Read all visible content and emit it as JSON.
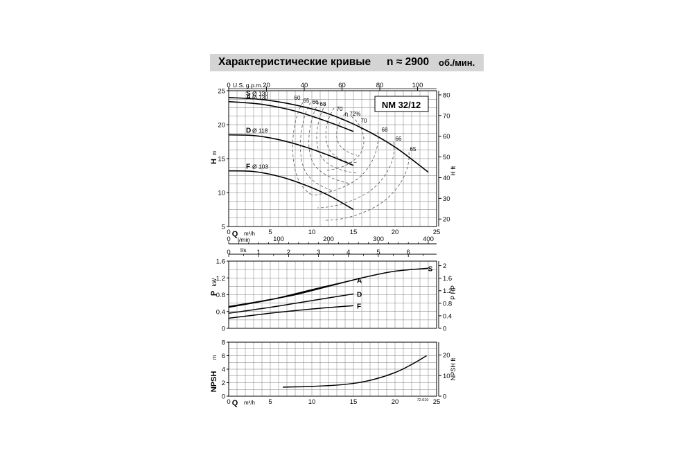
{
  "title": {
    "main": "Характеристические кривые",
    "speed": "n ≈ 2900",
    "unit": "об./мин."
  },
  "model": "NM 32/12",
  "doc_code": "72.010",
  "chart_data": [
    {
      "type": "line",
      "panel": "head",
      "ylabel": "H m",
      "ylabel_right": "H ft",
      "xlabel": "Q m³/h",
      "xlim": [
        0,
        25
      ],
      "ylim": [
        5,
        25
      ],
      "ylim_right": [
        16.4,
        82.0
      ],
      "xticks": [
        0,
        5,
        10,
        15,
        20,
        25
      ],
      "yticks": [
        5,
        10,
        15,
        20,
        25
      ],
      "yticks_right": [
        20,
        30,
        40,
        50,
        60,
        70,
        80
      ],
      "top_axis": {
        "label": "U.S. g.p.m.",
        "ticks": [
          0,
          20,
          40,
          60,
          80,
          100
        ],
        "factor": 4.403
      },
      "grid": true,
      "series": [
        {
          "name": "S",
          "diameter": "Ø 130",
          "x": [
            0,
            4,
            8,
            12,
            16,
            20,
            24
          ],
          "y": [
            24.0,
            23.7,
            22.9,
            21.6,
            19.5,
            16.7,
            13.0
          ]
        },
        {
          "name": "A",
          "diameter": "Ø 130",
          "x": [
            0,
            4,
            8,
            12,
            15
          ],
          "y": [
            23.4,
            23.0,
            22.0,
            20.4,
            19.0
          ]
        },
        {
          "name": "D",
          "diameter": "Ø 118",
          "x": [
            0,
            3,
            6,
            9,
            12,
            15
          ],
          "y": [
            18.5,
            18.4,
            17.8,
            16.8,
            15.5,
            14.0
          ]
        },
        {
          "name": "F",
          "diameter": "Ø 103",
          "x": [
            0,
            3,
            6,
            9,
            12,
            15
          ],
          "y": [
            13.2,
            13.1,
            12.4,
            11.2,
            9.6,
            7.5
          ]
        }
      ],
      "efficiency_labels": [
        "60",
        "65",
        "66",
        "68",
        "70",
        "η 72%",
        "70",
        "68",
        "66",
        "65"
      ]
    },
    {
      "type": "line",
      "panel": "flow-scales",
      "l_min": {
        "label": "l/min",
        "ticks": [
          0,
          100,
          200,
          300,
          400
        ]
      },
      "l_s": {
        "label": "l/s",
        "ticks": [
          0,
          1,
          2,
          3,
          4,
          5,
          6
        ]
      }
    },
    {
      "type": "line",
      "panel": "power",
      "ylabel": "P kW",
      "ylabel_right": "P HP",
      "xlim": [
        0,
        25
      ],
      "ylim": [
        0,
        1.6
      ],
      "ylim_right": [
        0,
        2.145
      ],
      "yticks": [
        0,
        0.4,
        0.8,
        1.2,
        1.6
      ],
      "yticks_right": [
        0,
        0.4,
        0.8,
        1.2,
        1.6,
        2.0
      ],
      "grid": true,
      "series": [
        {
          "name": "S",
          "x": [
            0,
            4,
            8,
            12,
            16,
            20,
            24
          ],
          "y": [
            0.52,
            0.65,
            0.8,
            1.0,
            1.2,
            1.36,
            1.43
          ]
        },
        {
          "name": "A",
          "x": [
            0,
            5,
            10,
            15
          ],
          "y": [
            0.5,
            0.68,
            0.92,
            1.15
          ]
        },
        {
          "name": "D",
          "x": [
            0,
            5,
            10,
            15
          ],
          "y": [
            0.36,
            0.5,
            0.66,
            0.82
          ]
        },
        {
          "name": "F",
          "x": [
            0,
            5,
            10,
            15
          ],
          "y": [
            0.24,
            0.36,
            0.46,
            0.54
          ]
        }
      ]
    },
    {
      "type": "line",
      "panel": "npsh",
      "ylabel": "NPSH m",
      "ylabel_right": "NPSH ft",
      "xlabel": "Q m³/h",
      "xlim": [
        0,
        25
      ],
      "ylim": [
        0,
        8
      ],
      "ylim_right": [
        0,
        26.25
      ],
      "xticks": [
        0,
        5,
        10,
        15,
        20,
        25
      ],
      "yticks": [
        0,
        2,
        4,
        6,
        8
      ],
      "yticks_right": [
        0,
        10,
        20
      ],
      "grid": true,
      "series": [
        {
          "name": "NPSH",
          "x": [
            6.5,
            10,
            14,
            17,
            20,
            22,
            23.8
          ],
          "y": [
            1.35,
            1.45,
            1.75,
            2.35,
            3.5,
            4.7,
            6.0
          ]
        }
      ]
    }
  ]
}
